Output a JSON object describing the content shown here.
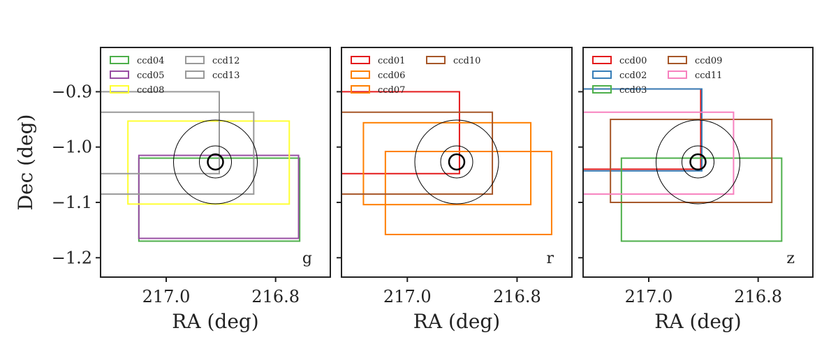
{
  "chart_data": [
    {
      "type": "line",
      "band_label": "g",
      "xlabel": "RA (deg)",
      "ylabel": "Dec (deg)",
      "xlim": [
        217.12,
        216.7
      ],
      "ylim": [
        -1.235,
        -0.82
      ],
      "xticks": [
        217.0,
        216.8
      ],
      "xtick_labels": [
        "217.0",
        "216.8"
      ],
      "yticks": [
        -0.9,
        -1.0,
        -1.1,
        -1.2
      ],
      "ytick_labels": [
        "−0.9",
        "−1.0",
        "−1.1",
        "−1.2"
      ],
      "legend_position": "upper-left",
      "series": [
        {
          "name": "ccd04",
          "color": "#4daf4a",
          "ra": [
            217.05,
            216.756
          ],
          "dec": [
            -1.02,
            -1.17
          ]
        },
        {
          "name": "ccd05",
          "color": "#984ea3",
          "ra": [
            217.05,
            216.758
          ],
          "dec": [
            -1.015,
            -1.165
          ]
        },
        {
          "name": "ccd08",
          "color": "#ffff33",
          "ra": [
            217.07,
            216.775
          ],
          "dec": [
            -0.953,
            -1.103
          ]
        },
        {
          "name": "ccd12",
          "color": "#999999",
          "ra": [
            217.12,
            216.903
          ],
          "dec": [
            -0.9,
            -1.048
          ]
        },
        {
          "name": "ccd13",
          "color": "#999999",
          "ra": [
            217.12,
            216.84
          ],
          "dec": [
            -0.937,
            -1.085
          ]
        }
      ]
    },
    {
      "type": "line",
      "band_label": "r",
      "xlabel": "RA (deg)",
      "ylabel": "",
      "xlim": [
        217.12,
        216.7
      ],
      "ylim": [
        -1.235,
        -0.82
      ],
      "xticks": [
        217.0,
        216.8
      ],
      "xtick_labels": [
        "217.0",
        "216.8"
      ],
      "yticks": [
        -0.9,
        -1.0,
        -1.1,
        -1.2
      ],
      "ytick_labels": [],
      "legend_position": "upper-left",
      "series": [
        {
          "name": "ccd01",
          "color": "#e41a1c",
          "ra": [
            217.12,
            216.905
          ],
          "dec": [
            -0.9,
            -1.048
          ]
        },
        {
          "name": "ccd06",
          "color": "#ff7f00",
          "ra": [
            217.08,
            216.775
          ],
          "dec": [
            -0.956,
            -1.104
          ]
        },
        {
          "name": "ccd07",
          "color": "#ff7f00",
          "ra": [
            217.04,
            216.737
          ],
          "dec": [
            -1.008,
            -1.158
          ]
        },
        {
          "name": "ccd10",
          "color": "#a65628",
          "ra": [
            217.12,
            216.845
          ],
          "dec": [
            -0.937,
            -1.085
          ]
        }
      ]
    },
    {
      "type": "line",
      "band_label": "z",
      "xlabel": "RA (deg)",
      "ylabel": "",
      "xlim": [
        217.12,
        216.7
      ],
      "ylim": [
        -1.235,
        -0.82
      ],
      "xticks": [
        217.0,
        216.8
      ],
      "xtick_labels": [
        "217.0",
        "216.8"
      ],
      "yticks": [
        -0.9,
        -1.0,
        -1.1,
        -1.2
      ],
      "ytick_labels": [],
      "legend_position": "upper-left",
      "series": [
        {
          "name": "ccd00",
          "color": "#e41a1c",
          "ra": [
            217.12,
            216.905
          ],
          "dec": [
            -0.895,
            -1.04
          ]
        },
        {
          "name": "ccd02",
          "color": "#377eb8",
          "ra": [
            217.12,
            216.903
          ],
          "dec": [
            -0.895,
            -1.043
          ]
        },
        {
          "name": "ccd03",
          "color": "#4daf4a",
          "ra": [
            217.05,
            216.757
          ],
          "dec": [
            -1.02,
            -1.17
          ]
        },
        {
          "name": "ccd09",
          "color": "#a65628",
          "ra": [
            217.07,
            216.775
          ],
          "dec": [
            -0.95,
            -1.1
          ]
        },
        {
          "name": "ccd11",
          "color": "#f781bf",
          "ra": [
            217.12,
            216.845
          ],
          "dec": [
            -0.937,
            -1.085
          ]
        }
      ]
    }
  ]
}
